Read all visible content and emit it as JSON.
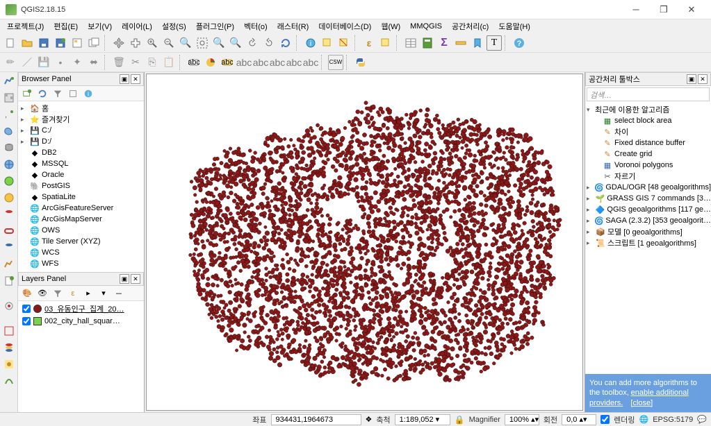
{
  "window": {
    "title": "QGIS2.18.15"
  },
  "menu": [
    "프로젝트(J)",
    "편집(E)",
    "보기(V)",
    "레이어(L)",
    "설정(S)",
    "플러그인(P)",
    "벡터(o)",
    "래스터(R)",
    "데이터베이스(D)",
    "웹(W)",
    "MMQGIS",
    "공간처리(c)",
    "도움말(H)"
  ],
  "browser_panel": {
    "title": "Browser Panel",
    "items": [
      {
        "icon": "🏠",
        "label": "홈",
        "arrow": "▸"
      },
      {
        "icon": "⭐",
        "label": "즐겨찾기",
        "arrow": "▸"
      },
      {
        "icon": "💾",
        "label": "C:/",
        "arrow": "▸"
      },
      {
        "icon": "💾",
        "label": "D:/",
        "arrow": "▸"
      },
      {
        "icon": "◆",
        "label": "DB2",
        "arrow": ""
      },
      {
        "icon": "◆",
        "label": "MSSQL",
        "arrow": ""
      },
      {
        "icon": "◆",
        "label": "Oracle",
        "arrow": ""
      },
      {
        "icon": "🐘",
        "label": "PostGIS",
        "arrow": ""
      },
      {
        "icon": "◆",
        "label": "SpatiaLite",
        "arrow": ""
      },
      {
        "icon": "🌐",
        "label": "ArcGisFeatureServer",
        "arrow": ""
      },
      {
        "icon": "🌐",
        "label": "ArcGisMapServer",
        "arrow": ""
      },
      {
        "icon": "🌐",
        "label": "OWS",
        "arrow": ""
      },
      {
        "icon": "🌐",
        "label": "Tile Server (XYZ)",
        "arrow": ""
      },
      {
        "icon": "🌐",
        "label": "WCS",
        "arrow": ""
      },
      {
        "icon": "🌐",
        "label": "WFS",
        "arrow": ""
      }
    ]
  },
  "layers_panel": {
    "title": "Layers Panel",
    "items": [
      {
        "checked": true,
        "symbol_color": "#8a1a1a",
        "symbol_shape": "circle",
        "label": "03_유동인구_집계_20…",
        "underline": true
      },
      {
        "checked": true,
        "symbol_color": "#7bd34a",
        "symbol_shape": "square",
        "label": "002_city_hall_squar…",
        "underline": false
      }
    ]
  },
  "toolbox": {
    "title": "공간처리 툴박스",
    "search_placeholder": "검색…",
    "recent_label": "최근에 이용한 알고리즘",
    "recent": [
      {
        "icon": "▦",
        "label": "select block area",
        "color": "#2a7a2a"
      },
      {
        "icon": "✎",
        "label": "차이",
        "color": "#c98b2a"
      },
      {
        "icon": "✎",
        "label": "Fixed distance buffer",
        "color": "#c98b2a"
      },
      {
        "icon": "✎",
        "label": "Create grid",
        "color": "#c98b2a"
      },
      {
        "icon": "▦",
        "label": "Voronoi polygons",
        "color": "#3a6aaa"
      },
      {
        "icon": "✂",
        "label": "자르기",
        "color": "#555"
      }
    ],
    "providers": [
      {
        "icon": "🌀",
        "label": "GDAL/OGR [48 geoalgorithms]"
      },
      {
        "icon": "🌱",
        "label": "GRASS GIS 7 commands [3…"
      },
      {
        "icon": "🔷",
        "label": "QGIS geoalgorithms [117 ge…"
      },
      {
        "icon": "🌀",
        "label": "SAGA (2.3.2) [353 geoalgorit…"
      },
      {
        "icon": "📦",
        "label": "모델 [0 geoalgorithms]"
      },
      {
        "icon": "📜",
        "label": "스크립트 [1 geoalgorithms]"
      }
    ],
    "info_text": "You can add more algorithms to the toolbox,",
    "info_link1": "enable additional providers.",
    "info_link2": "[close]"
  },
  "statusbar": {
    "coord_label": "좌표",
    "coord_value": "934431,1964673",
    "scale_label": "축척",
    "scale_value": "1:189,052",
    "magnifier_label": "Magnifier",
    "magnifier_value": "100%",
    "rotation_label": "회전",
    "rotation_value": "0,0",
    "render_label": "렌더링",
    "epsg": "EPSG:5179"
  },
  "map": {
    "point_color": "#8a1a1a",
    "point_border": "#2a0606",
    "background": "#ffffff"
  }
}
